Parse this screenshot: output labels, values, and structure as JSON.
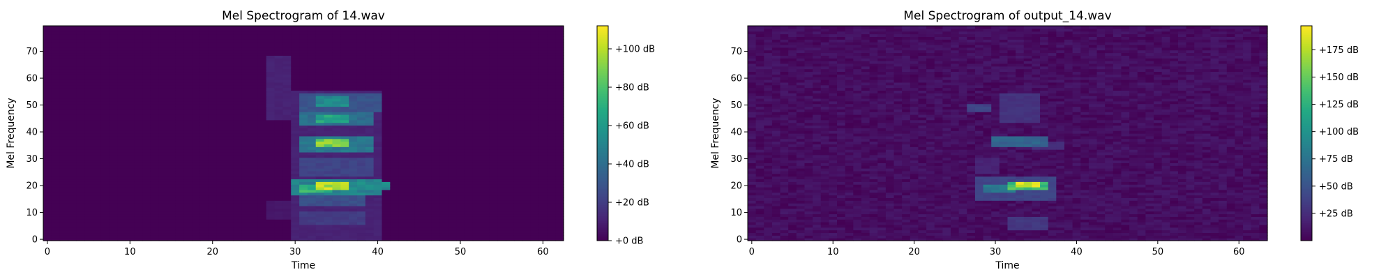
{
  "chart_data": [
    {
      "type": "heatmap",
      "title": "Mel Spectrogram of 14.wav",
      "xlabel": "Time",
      "ylabel": "Mel Frequency",
      "xlim": [
        -0.5,
        62.5
      ],
      "ylim": [
        -0.5,
        79.5
      ],
      "xticks": [
        0,
        10,
        20,
        30,
        40,
        50,
        60
      ],
      "yticks": [
        0,
        10,
        20,
        30,
        40,
        50,
        60,
        70
      ],
      "colormap": "viridis",
      "colorbar": {
        "min": 0,
        "max": 112,
        "ticks": [
          0,
          20,
          40,
          60,
          80,
          100
        ],
        "labels": [
          "+0 dB",
          "+20 dB",
          "+40 dB",
          "+60 dB",
          "+80 dB",
          "+100 dB"
        ]
      },
      "blobs": [
        {
          "t0": 30,
          "t1": 40,
          "f0": 0,
          "f1": 55,
          "value": 12
        },
        {
          "t0": 27,
          "t1": 29,
          "f0": 45,
          "f1": 68,
          "value": 12
        },
        {
          "t0": 27,
          "t1": 29,
          "f0": 8,
          "f1": 14,
          "value": 8
        },
        {
          "t0": 31,
          "t1": 40,
          "f0": 48,
          "f1": 54,
          "value": 32
        },
        {
          "t0": 33,
          "t1": 36,
          "f0": 50,
          "f1": 53,
          "value": 60
        },
        {
          "t0": 31,
          "t1": 39,
          "f0": 43,
          "f1": 47,
          "value": 45
        },
        {
          "t0": 33,
          "t1": 36,
          "f0": 44,
          "f1": 46,
          "value": 72
        },
        {
          "t0": 31,
          "t1": 39,
          "f0": 33,
          "f1": 38,
          "value": 50
        },
        {
          "t0": 33,
          "t1": 36,
          "f0": 35,
          "f1": 37,
          "value": 100
        },
        {
          "t0": 30,
          "t1": 40,
          "f0": 17,
          "f1": 22,
          "value": 55
        },
        {
          "t0": 33,
          "t1": 36,
          "f0": 19,
          "f1": 21,
          "value": 110
        },
        {
          "t0": 31,
          "t1": 34,
          "f0": 18,
          "f1": 20,
          "value": 80
        },
        {
          "t0": 36,
          "t1": 41,
          "f0": 19,
          "f1": 21,
          "value": 60
        },
        {
          "t0": 31,
          "t1": 39,
          "f0": 24,
          "f1": 30,
          "value": 25
        },
        {
          "t0": 31,
          "t1": 38,
          "f0": 13,
          "f1": 16,
          "value": 30
        },
        {
          "t0": 31,
          "t1": 38,
          "f0": 6,
          "f1": 10,
          "value": 22
        }
      ]
    },
    {
      "type": "heatmap",
      "title": "Mel Spectrogram of output_14.wav",
      "xlabel": "Time",
      "ylabel": "Mel Frequency",
      "xlim": [
        -0.5,
        63.5
      ],
      "ylim": [
        -0.5,
        79.5
      ],
      "xticks": [
        0,
        10,
        20,
        30,
        40,
        50,
        60
      ],
      "yticks": [
        0,
        10,
        20,
        30,
        40,
        50,
        60,
        70
      ],
      "colormap": "viridis",
      "colorbar": {
        "min": 0,
        "max": 197,
        "ticks": [
          25,
          50,
          75,
          100,
          125,
          150,
          175
        ],
        "labels": [
          "+25 dB",
          "+50 dB",
          "+75 dB",
          "+100 dB",
          "+125 dB",
          "+150 dB",
          "+175 dB"
        ]
      },
      "noise_level": 14,
      "blobs": [
        {
          "t0": 27,
          "t1": 29,
          "f0": 48,
          "f1": 50,
          "value": 45
        },
        {
          "t0": 31,
          "t1": 35,
          "f0": 44,
          "f1": 54,
          "value": 32
        },
        {
          "t0": 30,
          "t1": 36,
          "f0": 35,
          "f1": 38,
          "value": 70
        },
        {
          "t0": 28,
          "t1": 37,
          "f0": 15,
          "f1": 23,
          "value": 45
        },
        {
          "t0": 29,
          "t1": 32,
          "f0": 18,
          "f1": 20,
          "value": 85
        },
        {
          "t0": 32,
          "t1": 36,
          "f0": 19,
          "f1": 21,
          "value": 150
        },
        {
          "t0": 33,
          "t1": 35,
          "f0": 20,
          "f1": 21,
          "value": 195
        },
        {
          "t0": 32,
          "t1": 36,
          "f0": 4,
          "f1": 8,
          "value": 35
        },
        {
          "t0": 28,
          "t1": 30,
          "f0": 25,
          "f1": 30,
          "value": 22
        },
        {
          "t0": 35,
          "t1": 38,
          "f0": 34,
          "f1": 36,
          "value": 28
        }
      ]
    }
  ]
}
